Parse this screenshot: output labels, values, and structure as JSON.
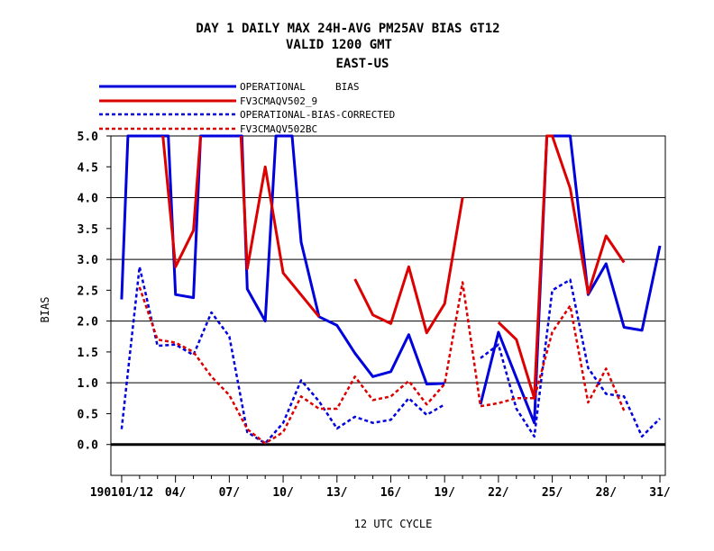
{
  "chart_data": {
    "type": "line",
    "title_lines": [
      "DAY 1 DAILY MAX   24H-AVG PM25AV BIAS GT12",
      "VALID 1200 GMT",
      "EAST-US"
    ],
    "xlabel": "12 UTC CYCLE",
    "ylabel": "BIAS",
    "ylim": [
      -0.5,
      5.0
    ],
    "xlim": [
      0.4,
      31.3
    ],
    "x_tick_labels": [
      {
        "x": 1,
        "label": "190101/12"
      },
      {
        "x": 4,
        "label": "04/"
      },
      {
        "x": 7,
        "label": "07/"
      },
      {
        "x": 10,
        "label": "10/"
      },
      {
        "x": 13,
        "label": "13/"
      },
      {
        "x": 16,
        "label": "16/"
      },
      {
        "x": 19,
        "label": "19/"
      },
      {
        "x": 22,
        "label": "22/"
      },
      {
        "x": 25,
        "label": "25/"
      },
      {
        "x": 28,
        "label": "28/"
      },
      {
        "x": 31,
        "label": "31/"
      }
    ],
    "y_ticks": [
      0.0,
      0.5,
      1.0,
      1.5,
      2.0,
      2.5,
      3.0,
      3.5,
      4.0,
      4.5,
      5.0
    ],
    "y_tick_labels": [
      "0.0",
      "0.5",
      "1.0",
      "1.5",
      "2.0",
      "2.5",
      "3.0",
      "3.5",
      "4.0",
      "4.5",
      "5.0"
    ],
    "grid_y": [
      1.0,
      2.0,
      3.0,
      4.0
    ],
    "zero_line": 0.0,
    "legend_position": "top-left",
    "series": [
      {
        "name": "OPERATIONAL     BIAS",
        "color": "#0000dd",
        "dash": "solid",
        "x": [
          1,
          1.35,
          3.2,
          3.6,
          4,
          5,
          5.4,
          7.7,
          8,
          9,
          9.6,
          10.5,
          11,
          12,
          13,
          14,
          15,
          16,
          17,
          18,
          19,
          null,
          21,
          22,
          23,
          24,
          24.7,
          26,
          27,
          28,
          29,
          30,
          31
        ],
        "y": [
          2.35,
          5.0,
          5.0,
          5.0,
          2.43,
          2.38,
          5.0,
          5.0,
          2.52,
          2.0,
          5.0,
          5.0,
          3.28,
          2.07,
          1.93,
          1.48,
          1.1,
          1.18,
          1.78,
          0.98,
          0.99,
          null,
          0.65,
          1.82,
          1.08,
          0.35,
          5.0,
          5.0,
          2.43,
          2.93,
          1.9,
          1.85,
          3.22
        ]
      },
      {
        "name": "FV3CMAQV502_9",
        "color": "#dd0000",
        "dash": "solid",
        "x": [
          3.3,
          4,
          5,
          5.4,
          null,
          7.65,
          8,
          9,
          10,
          12,
          null,
          14,
          15,
          16,
          17,
          18,
          19,
          20,
          null,
          22,
          23,
          24,
          24.7,
          25,
          26,
          27,
          28,
          29
        ],
        "y": [
          5.0,
          2.88,
          3.47,
          5.0,
          null,
          5.0,
          2.85,
          4.5,
          2.78,
          2.07,
          null,
          2.68,
          2.1,
          1.96,
          2.88,
          1.81,
          2.28,
          4.0,
          null,
          1.98,
          1.7,
          0.75,
          5.0,
          5.0,
          4.15,
          2.45,
          3.38,
          2.95
        ]
      },
      {
        "name": "OPERATIONAL-BIAS-CORRECTED",
        "color": "#0000dd",
        "dash": "dashed",
        "x": [
          1,
          2,
          3,
          4,
          5,
          6,
          7,
          8,
          9,
          10,
          11,
          12,
          13,
          14,
          15,
          16,
          17,
          18,
          19,
          null,
          21,
          22,
          23,
          24,
          25,
          26,
          27,
          28,
          29,
          30,
          31
        ],
        "y": [
          0.25,
          2.88,
          1.6,
          1.62,
          1.45,
          2.14,
          1.75,
          0.2,
          0.02,
          0.35,
          1.04,
          0.7,
          0.26,
          0.45,
          0.35,
          0.4,
          0.75,
          0.48,
          0.65,
          null,
          1.4,
          1.62,
          0.58,
          0.13,
          2.5,
          2.67,
          1.24,
          0.82,
          0.78,
          0.13,
          0.42
        ]
      },
      {
        "name": "FV3CMAQV502BC",
        "color": "#dd0000",
        "dash": "dashed",
        "x": [
          2,
          3,
          4,
          5,
          6,
          7,
          8,
          9,
          10,
          11,
          12,
          13,
          14,
          15,
          16,
          17,
          18,
          19,
          20,
          21,
          22,
          23,
          24,
          25,
          26,
          27,
          28,
          29
        ],
        "y": [
          2.55,
          1.7,
          1.65,
          1.5,
          1.1,
          0.8,
          0.25,
          0.02,
          0.2,
          0.78,
          0.58,
          0.58,
          1.1,
          0.72,
          0.78,
          1.03,
          0.65,
          0.98,
          2.63,
          0.62,
          0.67,
          0.75,
          0.75,
          1.82,
          2.25,
          0.68,
          1.23,
          0.55
        ]
      }
    ]
  }
}
